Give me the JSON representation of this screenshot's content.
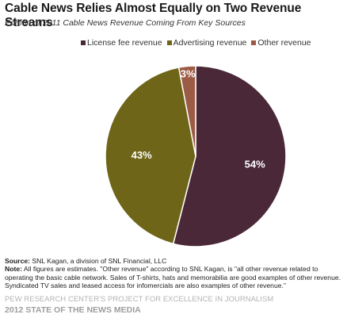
{
  "chart_data": {
    "type": "pie",
    "title": "Cable News Relies Almost Equally on Two Revenue  Streams",
    "subtitle": "Portion of 2011 Cable News Revenue Coming From Key Sources",
    "legend_position": "top",
    "slices": [
      {
        "label": "License fee revenue",
        "value": 54,
        "display": "54%",
        "color": "#4a2838"
      },
      {
        "label": "Advertising revenue",
        "value": 43,
        "display": "43%",
        "color": "#6e6518"
      },
      {
        "label": "Other revenue",
        "value": 3,
        "display": "3%",
        "color": "#9c5b45"
      }
    ]
  },
  "footer": {
    "source_label": "Source:",
    "source_text": " SNL Kagan, a division of SNL Financial, LLC",
    "note_label": "Note:",
    "note_text": " All figures are estimates. \"Other revenue\" according to SNL Kagan, is \"all other revenue related to operating the basic cable network. Sales of T-shirts, hats and memorabilia are good examples of other revenue. Syndicated TV sales and leased access for infomercials are also examples of other revenue.\"",
    "organization": "PEW RESEARCH CENTER'S PROJECT FOR EXCELLENCE IN JOURNALISM",
    "report": "2012 STATE OF THE NEWS MEDIA"
  }
}
